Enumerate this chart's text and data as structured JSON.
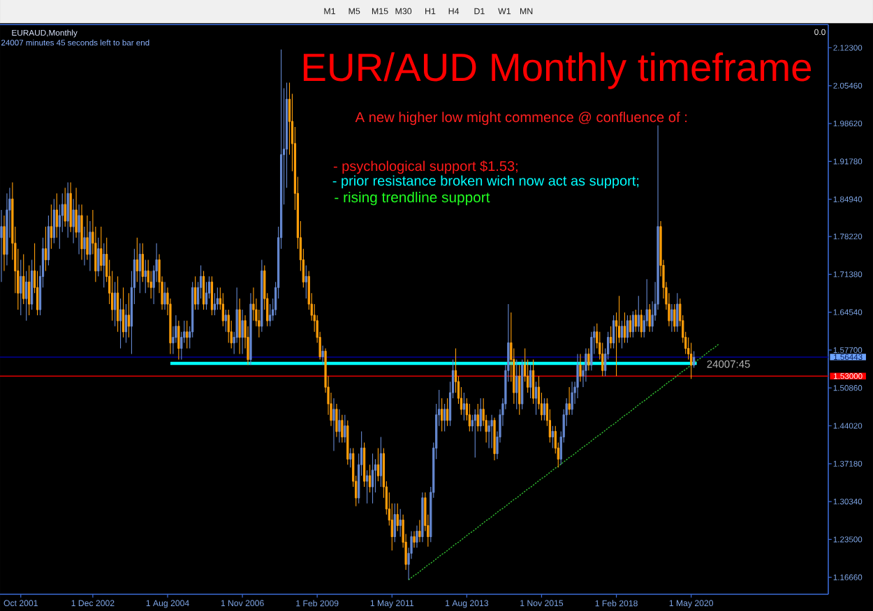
{
  "chart_data": {
    "type": "candlestick",
    "title": "EUR/AUD Monthly timeframe",
    "subtitle": "A new higher low might commence @ confluence of :",
    "annotations": [
      "- psychological support $1.53;",
      "- prior resistance broken wich now act as support;",
      "- rising trendline support",
      "EURAUD,Monthly",
      "24007 minutes 45 seconds left to bar end",
      "24007:45",
      "0.0",
      "M1",
      "M5",
      "M15",
      "M30",
      "H1",
      "H4",
      "D1",
      "W1",
      "MN"
    ],
    "categories": [
      null,
      null,
      null,
      null,
      null,
      null,
      null,
      "Oct 2001",
      null,
      null,
      null,
      null,
      null,
      null,
      null,
      null,
      null,
      null,
      null,
      null,
      null,
      null,
      null,
      null,
      null,
      null,
      null,
      null,
      null,
      null,
      null,
      null,
      null,
      "1 Dec 2002",
      null,
      null,
      null,
      null,
      null,
      null,
      null,
      null,
      null,
      null,
      null,
      null,
      null,
      null,
      null,
      null,
      null,
      null,
      null,
      null,
      null,
      null,
      null,
      null,
      null,
      null,
      "1 Aug 2004",
      null,
      null,
      null,
      null,
      null,
      null,
      null,
      null,
      null,
      null,
      null,
      null,
      null,
      null,
      null,
      null,
      null,
      null,
      null,
      null,
      null,
      null,
      null,
      null,
      null,
      null,
      "1 Nov 2006",
      null,
      null,
      null,
      null,
      null,
      null,
      null,
      null,
      null,
      null,
      null,
      null,
      null,
      null,
      null,
      null,
      null,
      null,
      null,
      null,
      null,
      null,
      null,
      null,
      null,
      null,
      "1 Feb 2009",
      null,
      null,
      null,
      null,
      null,
      null,
      null,
      null,
      null,
      null,
      null,
      null,
      null,
      null,
      null,
      null,
      null,
      null,
      null,
      null,
      null,
      null,
      null,
      null,
      null,
      null,
      "1 May 2011",
      null,
      null,
      null,
      null,
      null,
      null,
      null,
      null,
      null,
      null,
      null,
      null,
      null,
      null,
      null,
      null,
      null,
      null,
      null,
      null,
      null,
      null,
      null,
      null,
      null,
      null,
      "1 Aug 2013",
      null,
      null,
      null,
      null,
      null,
      null,
      null,
      null,
      null,
      null,
      null,
      null,
      null,
      null,
      null,
      null,
      null,
      null,
      null,
      null,
      null,
      null,
      null,
      null,
      null,
      null,
      "1 Nov 2015",
      null,
      null,
      null,
      null,
      null,
      null,
      null,
      null,
      null,
      null,
      null,
      null,
      null,
      null,
      null,
      null,
      null,
      null,
      null,
      null,
      null,
      null,
      null,
      null,
      null,
      null,
      "1 Feb 2018",
      null,
      null,
      null,
      null,
      null,
      null,
      null,
      null,
      null,
      null,
      null,
      null,
      null,
      null,
      null,
      null,
      null,
      null,
      null,
      null,
      null,
      null,
      null,
      null,
      null,
      null,
      "1 May 2020",
      null,
      null,
      null,
      null,
      null,
      null,
      null,
      null,
      null,
      null,
      null,
      null,
      null,
      null,
      null,
      null,
      null,
      null,
      null,
      null,
      null,
      null,
      null,
      null,
      null,
      null,
      null,
      null,
      null,
      null,
      null,
      null,
      null,
      null,
      null,
      null,
      null,
      null,
      null,
      null,
      null,
      null,
      null,
      null,
      null,
      null,
      null,
      null,
      null
    ],
    "ohlc": [
      [
        1.78,
        1.83,
        1.7,
        1.8
      ],
      [
        1.8,
        1.82,
        1.72,
        1.75
      ],
      [
        1.75,
        1.86,
        1.73,
        1.83
      ],
      [
        1.83,
        1.87,
        1.78,
        1.85
      ],
      [
        1.85,
        1.88,
        1.74,
        1.77
      ],
      [
        1.77,
        1.8,
        1.68,
        1.72
      ],
      [
        1.72,
        1.76,
        1.65,
        1.68
      ],
      [
        1.68,
        1.74,
        1.64,
        1.71
      ],
      [
        1.71,
        1.75,
        1.66,
        1.67
      ],
      [
        1.67,
        1.72,
        1.63,
        1.7
      ],
      [
        1.7,
        1.73,
        1.64,
        1.66
      ],
      [
        1.66,
        1.74,
        1.65,
        1.72
      ],
      [
        1.72,
        1.77,
        1.68,
        1.69
      ],
      [
        1.69,
        1.72,
        1.64,
        1.65
      ],
      [
        1.65,
        1.73,
        1.64,
        1.71
      ],
      [
        1.71,
        1.78,
        1.69,
        1.76
      ],
      [
        1.76,
        1.8,
        1.72,
        1.74
      ],
      [
        1.74,
        1.82,
        1.73,
        1.8
      ],
      [
        1.8,
        1.84,
        1.76,
        1.78
      ],
      [
        1.78,
        1.85,
        1.77,
        1.83
      ],
      [
        1.83,
        1.86,
        1.78,
        1.8
      ],
      [
        1.8,
        1.84,
        1.76,
        1.82
      ],
      [
        1.82,
        1.86,
        1.79,
        1.84
      ],
      [
        1.84,
        1.87,
        1.8,
        1.81
      ],
      [
        1.81,
        1.88,
        1.78,
        1.86
      ],
      [
        1.86,
        1.88,
        1.79,
        1.8
      ],
      [
        1.8,
        1.85,
        1.77,
        1.83
      ],
      [
        1.83,
        1.87,
        1.78,
        1.79
      ],
      [
        1.79,
        1.84,
        1.75,
        1.82
      ],
      [
        1.82,
        1.84,
        1.74,
        1.76
      ],
      [
        1.76,
        1.8,
        1.73,
        1.78
      ],
      [
        1.78,
        1.82,
        1.74,
        1.75
      ],
      [
        1.75,
        1.81,
        1.72,
        1.79
      ],
      [
        1.79,
        1.83,
        1.75,
        1.77
      ],
      [
        1.77,
        1.8,
        1.7,
        1.72
      ],
      [
        1.72,
        1.78,
        1.71,
        1.76
      ],
      [
        1.76,
        1.8,
        1.72,
        1.73
      ],
      [
        1.73,
        1.77,
        1.69,
        1.75
      ],
      [
        1.75,
        1.78,
        1.7,
        1.71
      ],
      [
        1.71,
        1.74,
        1.66,
        1.68
      ],
      [
        1.68,
        1.72,
        1.63,
        1.65
      ],
      [
        1.65,
        1.7,
        1.62,
        1.68
      ],
      [
        1.68,
        1.71,
        1.61,
        1.63
      ],
      [
        1.63,
        1.67,
        1.58,
        1.65
      ],
      [
        1.65,
        1.69,
        1.6,
        1.61
      ],
      [
        1.61,
        1.66,
        1.59,
        1.64
      ],
      [
        1.64,
        1.68,
        1.6,
        1.62
      ],
      [
        1.62,
        1.72,
        1.57,
        1.69
      ],
      [
        1.69,
        1.76,
        1.66,
        1.74
      ],
      [
        1.74,
        1.78,
        1.7,
        1.72
      ],
      [
        1.72,
        1.77,
        1.68,
        1.75
      ],
      [
        1.75,
        1.77,
        1.7,
        1.71
      ],
      [
        1.71,
        1.74,
        1.68,
        1.72
      ],
      [
        1.72,
        1.74,
        1.69,
        1.7
      ],
      [
        1.7,
        1.72,
        1.67,
        1.69
      ],
      [
        1.69,
        1.73,
        1.66,
        1.72
      ],
      [
        1.72,
        1.77,
        1.7,
        1.74
      ],
      [
        1.74,
        1.75,
        1.68,
        1.7
      ],
      [
        1.7,
        1.71,
        1.65,
        1.66
      ],
      [
        1.66,
        1.7,
        1.65,
        1.68
      ],
      [
        1.68,
        1.69,
        1.64,
        1.66
      ],
      [
        1.66,
        1.67,
        1.57,
        1.59
      ],
      [
        1.59,
        1.62,
        1.57,
        1.6
      ],
      [
        1.6,
        1.64,
        1.59,
        1.62
      ],
      [
        1.62,
        1.63,
        1.56,
        1.58
      ],
      [
        1.58,
        1.61,
        1.56,
        1.6
      ],
      [
        1.6,
        1.63,
        1.59,
        1.61
      ],
      [
        1.61,
        1.63,
        1.58,
        1.6
      ],
      [
        1.6,
        1.62,
        1.58,
        1.61
      ],
      [
        1.61,
        1.7,
        1.6,
        1.69
      ],
      [
        1.69,
        1.71,
        1.65,
        1.66
      ],
      [
        1.66,
        1.7,
        1.65,
        1.69
      ],
      [
        1.69,
        1.73,
        1.67,
        1.71
      ],
      [
        1.71,
        1.72,
        1.65,
        1.66
      ],
      [
        1.66,
        1.7,
        1.65,
        1.68
      ],
      [
        1.68,
        1.71,
        1.67,
        1.7
      ],
      [
        1.7,
        1.71,
        1.64,
        1.65
      ],
      [
        1.65,
        1.68,
        1.64,
        1.66
      ],
      [
        1.66,
        1.69,
        1.65,
        1.67
      ],
      [
        1.67,
        1.69,
        1.65,
        1.66
      ],
      [
        1.66,
        1.68,
        1.62,
        1.63
      ],
      [
        1.63,
        1.65,
        1.61,
        1.64
      ],
      [
        1.64,
        1.65,
        1.59,
        1.61
      ],
      [
        1.61,
        1.63,
        1.58,
        1.59
      ],
      [
        1.59,
        1.61,
        1.57,
        1.6
      ],
      [
        1.6,
        1.69,
        1.59,
        1.65
      ],
      [
        1.65,
        1.67,
        1.57,
        1.6
      ],
      [
        1.6,
        1.65,
        1.57,
        1.63
      ],
      [
        1.63,
        1.64,
        1.58,
        1.6
      ],
      [
        1.6,
        1.62,
        1.55,
        1.56
      ],
      [
        1.56,
        1.68,
        1.55,
        1.66
      ],
      [
        1.66,
        1.69,
        1.63,
        1.65
      ],
      [
        1.65,
        1.67,
        1.62,
        1.63
      ],
      [
        1.63,
        1.65,
        1.6,
        1.62
      ],
      [
        1.62,
        1.74,
        1.61,
        1.72
      ],
      [
        1.72,
        1.73,
        1.65,
        1.67
      ],
      [
        1.67,
        1.68,
        1.62,
        1.63
      ],
      [
        1.63,
        1.66,
        1.62,
        1.64
      ],
      [
        1.64,
        1.67,
        1.63,
        1.65
      ],
      [
        1.65,
        1.7,
        1.64,
        1.69
      ],
      [
        1.69,
        1.8,
        1.67,
        1.78
      ],
      [
        1.78,
        2.12,
        1.76,
        1.93
      ],
      [
        1.93,
        2.05,
        1.84,
        1.94
      ],
      [
        1.94,
        2.06,
        1.87,
        2.03
      ],
      [
        2.03,
        2.06,
        1.93,
        1.99
      ],
      [
        1.99,
        2.04,
        1.9,
        1.95
      ],
      [
        1.95,
        1.98,
        1.83,
        1.86
      ],
      [
        1.86,
        1.89,
        1.76,
        1.78
      ],
      [
        1.78,
        1.81,
        1.72,
        1.74
      ],
      [
        1.74,
        1.76,
        1.69,
        1.7
      ],
      [
        1.7,
        1.73,
        1.67,
        1.71
      ],
      [
        1.71,
        1.72,
        1.65,
        1.66
      ],
      [
        1.66,
        1.68,
        1.63,
        1.64
      ],
      [
        1.64,
        1.66,
        1.61,
        1.63
      ],
      [
        1.63,
        1.64,
        1.59,
        1.6
      ],
      [
        1.6,
        1.61,
        1.56,
        1.565
      ],
      [
        1.565,
        1.585,
        1.55,
        1.575
      ],
      [
        1.575,
        1.58,
        1.5,
        1.51
      ],
      [
        1.51,
        1.53,
        1.46,
        1.48
      ],
      [
        1.48,
        1.5,
        1.44,
        1.45
      ],
      [
        1.45,
        1.49,
        1.395,
        1.47
      ],
      [
        1.47,
        1.48,
        1.42,
        1.43
      ],
      [
        1.43,
        1.47,
        1.41,
        1.45
      ],
      [
        1.45,
        1.46,
        1.41,
        1.42
      ],
      [
        1.42,
        1.46,
        1.41,
        1.44
      ],
      [
        1.44,
        1.45,
        1.37,
        1.38
      ],
      [
        1.38,
        1.4,
        1.365,
        1.39
      ],
      [
        1.39,
        1.4,
        1.33,
        1.34
      ],
      [
        1.34,
        1.35,
        1.295,
        1.31
      ],
      [
        1.31,
        1.39,
        1.3,
        1.37
      ],
      [
        1.37,
        1.43,
        1.35,
        1.4
      ],
      [
        1.4,
        1.41,
        1.33,
        1.34
      ],
      [
        1.34,
        1.36,
        1.3,
        1.35
      ],
      [
        1.35,
        1.37,
        1.32,
        1.33
      ],
      [
        1.33,
        1.39,
        1.3,
        1.36
      ],
      [
        1.36,
        1.38,
        1.32,
        1.37
      ],
      [
        1.37,
        1.4,
        1.34,
        1.35
      ],
      [
        1.35,
        1.42,
        1.33,
        1.39
      ],
      [
        1.39,
        1.4,
        1.31,
        1.33
      ],
      [
        1.33,
        1.34,
        1.28,
        1.29
      ],
      [
        1.29,
        1.32,
        1.26,
        1.27
      ],
      [
        1.27,
        1.3,
        1.215,
        1.24
      ],
      [
        1.24,
        1.3,
        1.23,
        1.28
      ],
      [
        1.28,
        1.3,
        1.25,
        1.26
      ],
      [
        1.26,
        1.29,
        1.24,
        1.27
      ],
      [
        1.27,
        1.28,
        1.22,
        1.23
      ],
      [
        1.23,
        1.245,
        1.18,
        1.19
      ],
      [
        1.19,
        1.22,
        1.162,
        1.21
      ],
      [
        1.21,
        1.25,
        1.2,
        1.24
      ],
      [
        1.24,
        1.25,
        1.22,
        1.23
      ],
      [
        1.23,
        1.26,
        1.22,
        1.25
      ],
      [
        1.25,
        1.27,
        1.23,
        1.24
      ],
      [
        1.24,
        1.32,
        1.23,
        1.31
      ],
      [
        1.31,
        1.32,
        1.25,
        1.26
      ],
      [
        1.26,
        1.28,
        1.222,
        1.24
      ],
      [
        1.24,
        1.33,
        1.23,
        1.32
      ],
      [
        1.32,
        1.41,
        1.31,
        1.4
      ],
      [
        1.4,
        1.48,
        1.38,
        1.46
      ],
      [
        1.46,
        1.505,
        1.44,
        1.47
      ],
      [
        1.47,
        1.49,
        1.43,
        1.45
      ],
      [
        1.45,
        1.48,
        1.43,
        1.47
      ],
      [
        1.47,
        1.49,
        1.44,
        1.45
      ],
      [
        1.45,
        1.52,
        1.44,
        1.5
      ],
      [
        1.5,
        1.56,
        1.49,
        1.54
      ],
      [
        1.54,
        1.58,
        1.5,
        1.52
      ],
      [
        1.52,
        1.53,
        1.48,
        1.49
      ],
      [
        1.49,
        1.51,
        1.46,
        1.47
      ],
      [
        1.47,
        1.5,
        1.45,
        1.48
      ],
      [
        1.48,
        1.49,
        1.45,
        1.46
      ],
      [
        1.46,
        1.48,
        1.43,
        1.44
      ],
      [
        1.44,
        1.46,
        1.43,
        1.45
      ],
      [
        1.45,
        1.47,
        1.383,
        1.46
      ],
      [
        1.46,
        1.48,
        1.43,
        1.44
      ],
      [
        1.44,
        1.49,
        1.43,
        1.47
      ],
      [
        1.47,
        1.49,
        1.44,
        1.45
      ],
      [
        1.45,
        1.46,
        1.41,
        1.43
      ],
      [
        1.43,
        1.45,
        1.4,
        1.44
      ],
      [
        1.44,
        1.46,
        1.4,
        1.45
      ],
      [
        1.45,
        1.455,
        1.378,
        1.39
      ],
      [
        1.39,
        1.43,
        1.38,
        1.42
      ],
      [
        1.42,
        1.47,
        1.41,
        1.46
      ],
      [
        1.46,
        1.49,
        1.44,
        1.48
      ],
      [
        1.48,
        1.55,
        1.47,
        1.54
      ],
      [
        1.54,
        1.66,
        1.52,
        1.59
      ],
      [
        1.59,
        1.645,
        1.52,
        1.56
      ],
      [
        1.56,
        1.58,
        1.48,
        1.5
      ],
      [
        1.5,
        1.56,
        1.47,
        1.53
      ],
      [
        1.53,
        1.55,
        1.46,
        1.48
      ],
      [
        1.48,
        1.56,
        1.47,
        1.55
      ],
      [
        1.55,
        1.58,
        1.52,
        1.53
      ],
      [
        1.53,
        1.56,
        1.5,
        1.51
      ],
      [
        1.51,
        1.55,
        1.49,
        1.54
      ],
      [
        1.54,
        1.56,
        1.48,
        1.49
      ],
      [
        1.49,
        1.52,
        1.46,
        1.51
      ],
      [
        1.51,
        1.53,
        1.47,
        1.48
      ],
      [
        1.48,
        1.5,
        1.45,
        1.46
      ],
      [
        1.46,
        1.49,
        1.45,
        1.48
      ],
      [
        1.48,
        1.49,
        1.44,
        1.45
      ],
      [
        1.45,
        1.47,
        1.41,
        1.42
      ],
      [
        1.42,
        1.44,
        1.4,
        1.43
      ],
      [
        1.43,
        1.44,
        1.39,
        1.4
      ],
      [
        1.4,
        1.41,
        1.365,
        1.38
      ],
      [
        1.38,
        1.43,
        1.37,
        1.42
      ],
      [
        1.42,
        1.47,
        1.41,
        1.46
      ],
      [
        1.46,
        1.49,
        1.44,
        1.48
      ],
      [
        1.48,
        1.51,
        1.46,
        1.47
      ],
      [
        1.47,
        1.52,
        1.46,
        1.5
      ],
      [
        1.5,
        1.52,
        1.48,
        1.51
      ],
      [
        1.51,
        1.57,
        1.49,
        1.55
      ],
      [
        1.55,
        1.57,
        1.52,
        1.53
      ],
      [
        1.53,
        1.55,
        1.51,
        1.54
      ],
      [
        1.54,
        1.58,
        1.52,
        1.57
      ],
      [
        1.57,
        1.58,
        1.54,
        1.55
      ],
      [
        1.55,
        1.61,
        1.54,
        1.6
      ],
      [
        1.6,
        1.62,
        1.57,
        1.61
      ],
      [
        1.61,
        1.625,
        1.58,
        1.59
      ],
      [
        1.59,
        1.61,
        1.56,
        1.57
      ],
      [
        1.57,
        1.59,
        1.53,
        1.54
      ],
      [
        1.54,
        1.58,
        1.53,
        1.57
      ],
      [
        1.57,
        1.61,
        1.56,
        1.6
      ],
      [
        1.6,
        1.62,
        1.58,
        1.59
      ],
      [
        1.59,
        1.64,
        1.58,
        1.63
      ],
      [
        1.63,
        1.645,
        1.53,
        1.62
      ],
      [
        1.62,
        1.675,
        1.59,
        1.6
      ],
      [
        1.6,
        1.63,
        1.58,
        1.62
      ],
      [
        1.62,
        1.645,
        1.59,
        1.6
      ],
      [
        1.6,
        1.64,
        1.59,
        1.63
      ],
      [
        1.63,
        1.64,
        1.6,
        1.61
      ],
      [
        1.61,
        1.647,
        1.6,
        1.64
      ],
      [
        1.64,
        1.65,
        1.61,
        1.62
      ],
      [
        1.62,
        1.675,
        1.61,
        1.64
      ],
      [
        1.64,
        1.65,
        1.6,
        1.61
      ],
      [
        1.61,
        1.64,
        1.6,
        1.63
      ],
      [
        1.63,
        1.705,
        1.62,
        1.65
      ],
      [
        1.65,
        1.66,
        1.61,
        1.62
      ],
      [
        1.62,
        1.665,
        1.61,
        1.64
      ],
      [
        1.64,
        1.7,
        1.63,
        1.66
      ],
      [
        1.66,
        1.983,
        1.65,
        1.8
      ],
      [
        1.8,
        1.81,
        1.71,
        1.73
      ],
      [
        1.73,
        1.74,
        1.67,
        1.69
      ],
      [
        1.69,
        1.7,
        1.65,
        1.66
      ],
      [
        1.66,
        1.68,
        1.62,
        1.63
      ],
      [
        1.63,
        1.66,
        1.61,
        1.65
      ],
      [
        1.65,
        1.66,
        1.61,
        1.62
      ],
      [
        1.62,
        1.68,
        1.61,
        1.66
      ],
      [
        1.66,
        1.67,
        1.62,
        1.63
      ],
      [
        1.63,
        1.64,
        1.59,
        1.6
      ],
      [
        1.6,
        1.61,
        1.57,
        1.58
      ],
      [
        1.58,
        1.6,
        1.56,
        1.57
      ],
      [
        1.57,
        1.59,
        1.525,
        1.55
      ],
      [
        1.55,
        1.575,
        1.545,
        1.564
      ],
      null,
      null,
      null,
      null,
      null,
      null,
      null,
      null,
      null,
      null,
      null,
      null,
      null,
      null,
      null,
      null,
      null,
      null,
      null,
      null,
      null,
      null,
      null,
      null,
      null,
      null,
      null,
      null,
      null,
      null,
      null,
      null,
      null,
      null,
      null,
      null,
      null,
      null,
      null,
      null,
      null,
      null,
      null,
      null,
      null,
      null,
      null,
      null
    ],
    "colors": [
      "#6689d1",
      "#ff9f0a",
      "#6689d1",
      "#6689d1",
      "#ff9f0a",
      "#ff9f0a",
      "#ff9f0a",
      "#6689d1",
      "#ff9f0a",
      "#6689d1",
      "#ff9f0a",
      "#6689d1",
      "#ff9f0a",
      "#ff9f0a",
      "#6689d1",
      "#6689d1",
      "#ff9f0a",
      "#6689d1",
      "#ff9f0a",
      "#6689d1",
      "#ff9f0a",
      "#6689d1",
      "#6689d1",
      "#ff9f0a",
      "#6689d1",
      "#ff9f0a",
      "#6689d1",
      "#ff9f0a",
      "#6689d1",
      "#ff9f0a",
      "#6689d1",
      "#ff9f0a",
      "#6689d1",
      "#ff9f0a",
      "#ff9f0a",
      "#6689d1",
      "#ff9f0a",
      "#6689d1",
      "#ff9f0a",
      "#ff9f0a",
      "#ff9f0a",
      "#6689d1",
      "#ff9f0a",
      "#6689d1",
      "#ff9f0a",
      "#6689d1",
      "#ff9f0a",
      "#6689d1",
      "#6689d1",
      "#ff9f0a",
      "#6689d1",
      "#ff9f0a",
      "#6689d1",
      "#ff9f0a",
      "#ff9f0a",
      "#6689d1",
      "#6689d1",
      "#ff9f0a",
      "#ff9f0a",
      "#6689d1",
      "#ff9f0a",
      "#ff9f0a",
      "#6689d1",
      "#6689d1",
      "#ff9f0a",
      "#6689d1",
      "#6689d1",
      "#ff9f0a",
      "#6689d1",
      "#6689d1",
      "#ff9f0a",
      "#6689d1",
      "#6689d1",
      "#ff9f0a",
      "#6689d1",
      "#6689d1",
      "#ff9f0a",
      "#6689d1",
      "#6689d1",
      "#ff9f0a",
      "#ff9f0a",
      "#6689d1",
      "#ff9f0a",
      "#ff9f0a",
      "#6689d1",
      "#6689d1",
      "#ff9f0a",
      "#6689d1",
      "#ff9f0a",
      "#ff9f0a",
      "#6689d1",
      "#ff9f0a",
      "#ff9f0a",
      "#ff9f0a",
      "#6689d1",
      "#ff9f0a",
      "#ff9f0a",
      "#6689d1",
      "#6689d1",
      "#6689d1",
      "#6689d1",
      "#6689d1",
      "#6689d1",
      "#6689d1",
      "#ff9f0a",
      "#ff9f0a",
      "#ff9f0a",
      "#ff9f0a",
      "#ff9f0a",
      "#ff9f0a",
      "#6689d1",
      "#ff9f0a",
      "#ff9f0a",
      "#ff9f0a",
      "#ff9f0a",
      "#ff9f0a",
      "#6689d1",
      "#ff9f0a",
      "#ff9f0a",
      "#ff9f0a",
      "#6689d1",
      "#ff9f0a",
      "#6689d1",
      "#ff9f0a",
      "#6689d1",
      "#ff9f0a",
      "#6689d1",
      "#ff9f0a",
      "#ff9f0a",
      "#6689d1",
      "#6689d1",
      "#ff9f0a",
      "#6689d1",
      "#ff9f0a",
      "#6689d1",
      "#6689d1",
      "#ff9f0a",
      "#6689d1",
      "#ff9f0a",
      "#ff9f0a",
      "#ff9f0a",
      "#ff9f0a",
      "#6689d1",
      "#ff9f0a",
      "#6689d1",
      "#ff9f0a",
      "#ff9f0a",
      "#6689d1",
      "#6689d1",
      "#ff9f0a",
      "#6689d1",
      "#ff9f0a",
      "#6689d1",
      "#ff9f0a",
      "#ff9f0a",
      "#6689d1",
      "#6689d1",
      "#6689d1",
      "#6689d1",
      "#ff9f0a",
      "#6689d1",
      "#ff9f0a",
      "#6689d1",
      "#6689d1",
      "#ff9f0a",
      "#ff9f0a",
      "#ff9f0a",
      "#6689d1",
      "#ff9f0a",
      "#ff9f0a",
      "#6689d1",
      "#6689d1",
      "#ff9f0a",
      "#6689d1",
      "#ff9f0a",
      "#ff9f0a",
      "#6689d1",
      "#6689d1",
      "#ff9f0a",
      "#6689d1",
      "#6689d1",
      "#6689d1",
      "#6689d1",
      "#6689d1",
      "#ff9f0a",
      "#ff9f0a",
      "#6689d1",
      "#ff9f0a",
      "#6689d1",
      "#ff9f0a",
      "#ff9f0a",
      "#6689d1",
      "#ff9f0a",
      "#6689d1",
      "#ff9f0a",
      "#ff9f0a",
      "#6689d1",
      "#ff9f0a",
      "#ff9f0a",
      "#6689d1",
      "#ff9f0a",
      "#ff9f0a",
      "#6689d1",
      "#6689d1",
      "#6689d1",
      "#ff9f0a",
      "#6689d1",
      "#6689d1",
      "#6689d1",
      "#ff9f0a",
      "#6689d1",
      "#6689d1",
      "#ff9f0a",
      "#6689d1",
      "#6689d1",
      "#ff9f0a",
      "#ff9f0a",
      "#ff9f0a",
      "#6689d1",
      "#6689d1",
      "#ff9f0a",
      "#6689d1",
      "#ff9f0a",
      "#ff9f0a",
      "#6689d1",
      "#ff9f0a",
      "#6689d1",
      "#ff9f0a",
      "#6689d1",
      "#ff9f0a",
      "#6689d1",
      "#ff9f0a",
      "#6689d1",
      "#6689d1",
      "#ff9f0a",
      "#6689d1",
      "#6689d1",
      "#6689d1",
      "#ff9f0a",
      "#ff9f0a",
      "#ff9f0a",
      "#ff9f0a",
      "#6689d1",
      "#ff9f0a",
      "#6689d1",
      "#ff9f0a",
      "#ff9f0a",
      "#ff9f0a",
      "#ff9f0a",
      "#ff9f0a",
      "#6689d1",
      null,
      null,
      null,
      null,
      null,
      null,
      null,
      null,
      null,
      null,
      null,
      null,
      null,
      null,
      null,
      null,
      null,
      null,
      null,
      null,
      null,
      null,
      null,
      null,
      null,
      null,
      null,
      null,
      null,
      null,
      null,
      null,
      null,
      null,
      null,
      null,
      null,
      null,
      null,
      null,
      null,
      null,
      null,
      null,
      null,
      null,
      null,
      null
    ],
    "series": [
      {
        "type": "line",
        "color": "#00ffff",
        "values": [
          null,
          null,
          null,
          null,
          null,
          null,
          null,
          null,
          null,
          null,
          null,
          null,
          null,
          null,
          null,
          null,
          null,
          null,
          null,
          null,
          null,
          null,
          null,
          null,
          null,
          null,
          null,
          null,
          null,
          null,
          null,
          null,
          null,
          null,
          null,
          null,
          null,
          null,
          null,
          null,
          null,
          null,
          null,
          null,
          null,
          null,
          null,
          null,
          null,
          null,
          null,
          null,
          null,
          null,
          null,
          null,
          null,
          null,
          null,
          null,
          null,
          1.553,
          1.553,
          1.553,
          1.553,
          1.553,
          1.553,
          1.553,
          1.553,
          1.553,
          1.553,
          1.553,
          1.553,
          1.553,
          1.553,
          1.553,
          1.553,
          1.553,
          1.553,
          1.553,
          1.553,
          1.553,
          1.553,
          1.553,
          1.553,
          1.553,
          1.553,
          1.553,
          1.553,
          1.553,
          1.553,
          1.553,
          1.553,
          1.553,
          1.553,
          1.553,
          1.553,
          1.553,
          1.553,
          1.553,
          1.553,
          1.553,
          1.553,
          1.553,
          1.553,
          1.553,
          1.553,
          1.553,
          1.553,
          1.553,
          1.553,
          1.553,
          1.553,
          1.553,
          1.553,
          1.553,
          1.553,
          1.553,
          1.553,
          1.553,
          1.553,
          1.553,
          1.553,
          1.553,
          1.553,
          1.553,
          1.553,
          1.553,
          1.553,
          1.553,
          1.553,
          1.553,
          1.553,
          1.553,
          1.553,
          1.553,
          1.553,
          1.553,
          1.553,
          1.553,
          1.553,
          1.553,
          1.553,
          1.553,
          1.553,
          1.553,
          1.553,
          1.553,
          1.553,
          1.553,
          1.553,
          1.553,
          1.553,
          1.553,
          1.553,
          1.553,
          1.553,
          1.553,
          1.553,
          1.553,
          1.553,
          1.553,
          1.553,
          1.553,
          1.553,
          1.553,
          1.553,
          1.553,
          1.553,
          1.553,
          1.553,
          1.553,
          1.553,
          1.553,
          1.553,
          1.553,
          1.553,
          1.553,
          1.553,
          1.553,
          1.553,
          1.553,
          1.553,
          1.553,
          1.553,
          1.553,
          1.553,
          1.553,
          1.553,
          1.553,
          1.553,
          1.553,
          1.553,
          1.553,
          1.553,
          1.553,
          1.553,
          1.553,
          1.553,
          1.553,
          1.553,
          1.553,
          1.553,
          1.553,
          1.553,
          1.553,
          1.553,
          1.553,
          1.553,
          1.553,
          1.553,
          1.553,
          1.553,
          1.553,
          1.553,
          1.553,
          1.553,
          1.553,
          1.553,
          1.553,
          1.553,
          1.553,
          1.553,
          1.553,
          1.553,
          1.553,
          1.553,
          1.553,
          1.553,
          1.553,
          1.553,
          1.553,
          1.553,
          1.553,
          1.553,
          1.553,
          1.553,
          1.553,
          1.553,
          1.553,
          1.553,
          1.553,
          1.553,
          1.553,
          1.553,
          1.553,
          1.553,
          1.553,
          1.553,
          1.553,
          1.553,
          1.553,
          null,
          null,
          null,
          null,
          null,
          null,
          null,
          null,
          null,
          null,
          null,
          null,
          null,
          null,
          null,
          null,
          null,
          null,
          null,
          null,
          null,
          null,
          null,
          null,
          null,
          null,
          null,
          null,
          null,
          null,
          null,
          null,
          null,
          null,
          null,
          null,
          null,
          null,
          null,
          null,
          null,
          null,
          null,
          null,
          null,
          null,
          null
        ]
      },
      {
        "type": "line",
        "color": "#2fb52f",
        "line_style": "dotted",
        "values": [
          null,
          null,
          null,
          null,
          null,
          null,
          null,
          null,
          null,
          null,
          null,
          null,
          null,
          null,
          null,
          null,
          null,
          null,
          null,
          null,
          null,
          null,
          null,
          null,
          null,
          null,
          null,
          null,
          null,
          null,
          null,
          null,
          null,
          null,
          null,
          null,
          null,
          null,
          null,
          null,
          null,
          null,
          null,
          null,
          null,
          null,
          null,
          null,
          null,
          null,
          null,
          null,
          null,
          null,
          null,
          null,
          null,
          null,
          null,
          null,
          null,
          null,
          null,
          null,
          null,
          null,
          null,
          null,
          null,
          null,
          null,
          null,
          null,
          null,
          null,
          null,
          null,
          null,
          null,
          null,
          null,
          null,
          null,
          null,
          null,
          null,
          null,
          null,
          null,
          null,
          null,
          null,
          null,
          null,
          null,
          null,
          null,
          null,
          null,
          null,
          null,
          null,
          null,
          null,
          null,
          null,
          null,
          null,
          null,
          null,
          null,
          null,
          null,
          null,
          null,
          null,
          null,
          null,
          null,
          null,
          null,
          null,
          null,
          null,
          null,
          null,
          null,
          null,
          null,
          null,
          null,
          null,
          null,
          null,
          null,
          null,
          null,
          null,
          null,
          null,
          null,
          null,
          null,
          null,
          null,
          null,
          null,
          1.162,
          1.166,
          1.17,
          1.173,
          1.177,
          1.181,
          1.185,
          1.189,
          1.192,
          1.196,
          1.2,
          1.204,
          1.208,
          1.211,
          1.215,
          1.219,
          1.223,
          1.227,
          1.23,
          1.234,
          1.238,
          1.242,
          1.246,
          1.249,
          1.253,
          1.257,
          1.261,
          1.265,
          1.269,
          1.272,
          1.276,
          1.28,
          1.284,
          1.288,
          1.291,
          1.295,
          1.299,
          1.303,
          1.307,
          1.31,
          1.314,
          1.318,
          1.322,
          1.326,
          1.329,
          1.333,
          1.337,
          1.341,
          1.345,
          1.348,
          1.352,
          1.356,
          1.36,
          1.364,
          1.367,
          1.371,
          1.375,
          1.379,
          1.383,
          1.386,
          1.39,
          1.394,
          1.398,
          1.402,
          1.405,
          1.409,
          1.413,
          1.417,
          1.421,
          1.424,
          1.428,
          1.432,
          1.436,
          1.44,
          1.443,
          1.447,
          1.451,
          1.455,
          1.459,
          1.462,
          1.466,
          1.47,
          1.474,
          1.478,
          1.482,
          1.485,
          1.489,
          1.493,
          1.497,
          1.501,
          1.504,
          1.508,
          1.512,
          1.516,
          1.52,
          1.523,
          1.527,
          1.531,
          1.535,
          1.539,
          1.542,
          1.546,
          1.55,
          1.554,
          1.558,
          1.561,
          1.565,
          1.569,
          1.573,
          1.577,
          1.58,
          1.584,
          1.588,
          null,
          null,
          null,
          null,
          null,
          null,
          null,
          null,
          null,
          null,
          null,
          null,
          null,
          null,
          null,
          null,
          null,
          null,
          null,
          null,
          null,
          null,
          null,
          null,
          null,
          null,
          null,
          null,
          null,
          null,
          null,
          null,
          null,
          null,
          null,
          null,
          null,
          null,
          null
        ]
      }
    ],
    "ref_lines": [
      {
        "axis": "y",
        "value": 1.56443,
        "label": "1.56443",
        "color": "#000099"
      },
      {
        "axis": "y",
        "value": 1.53,
        "label": "1.53000",
        "color": "#e00000"
      }
    ],
    "ylim": [
      1.136,
      2.165
    ],
    "yticks": [
      {
        "value": 2.123,
        "label": "2.12300"
      },
      {
        "value": 2.0546,
        "label": "2.05460"
      },
      {
        "value": 1.9862,
        "label": "1.98620"
      },
      {
        "value": 1.9178,
        "label": "1.91780"
      },
      {
        "value": 1.8494,
        "label": "1.84940"
      },
      {
        "value": 1.7822,
        "label": "1.78220"
      },
      {
        "value": 1.7138,
        "label": "1.71380"
      },
      {
        "value": 1.6454,
        "label": "1.64540"
      },
      {
        "value": 1.577,
        "label": "1.57700"
      },
      {
        "value": 1.5086,
        "label": "1.50860"
      },
      {
        "value": 1.4402,
        "label": "1.44020"
      },
      {
        "value": 1.3718,
        "label": "1.37180"
      },
      {
        "value": 1.3034,
        "label": "1.30340"
      },
      {
        "value": 1.235,
        "label": "1.23500"
      },
      {
        "value": 1.1666,
        "label": "1.16660"
      }
    ]
  }
}
